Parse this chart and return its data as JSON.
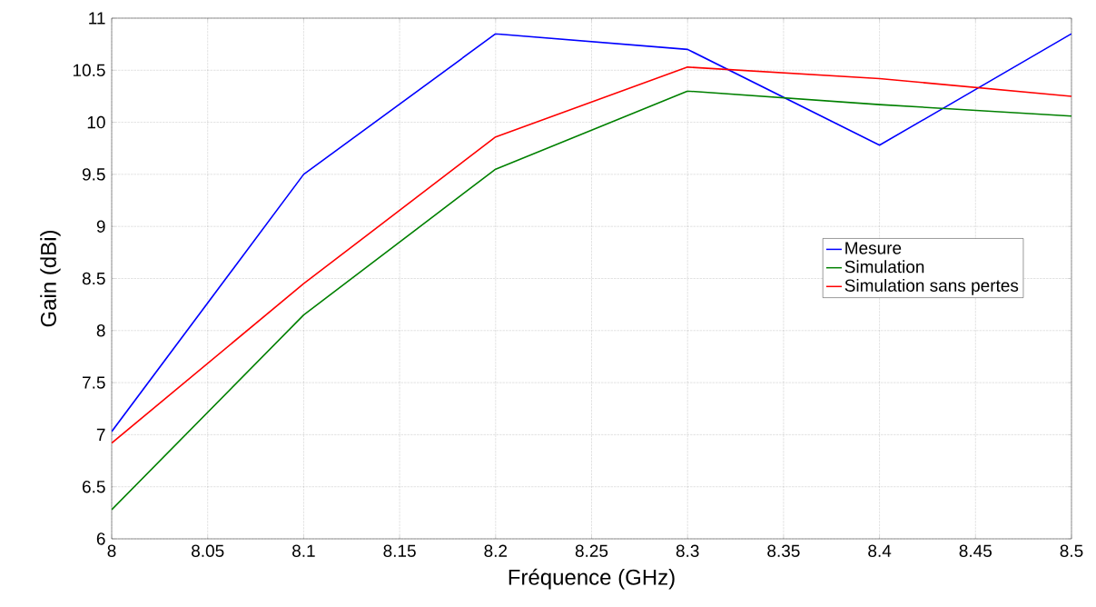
{
  "chart_data": {
    "type": "line",
    "xlabel": "Fréquence (GHz)",
    "ylabel": "Gain (dBi)",
    "x": [
      8.0,
      8.1,
      8.2,
      8.3,
      8.4,
      8.5
    ],
    "series": [
      {
        "name": "Mesure",
        "color": "#0000ff",
        "values": [
          7.03,
          9.5,
          10.85,
          10.7,
          9.78,
          10.85
        ]
      },
      {
        "name": "Simulation",
        "color": "#008000",
        "values": [
          6.28,
          8.15,
          9.55,
          10.3,
          10.17,
          10.06
        ]
      },
      {
        "name": "Simulation  sans pertes",
        "color": "#ff0000",
        "values": [
          6.92,
          8.45,
          9.86,
          10.53,
          10.42,
          10.25
        ]
      }
    ],
    "xlim": [
      8,
      8.5
    ],
    "ylim": [
      6,
      11
    ],
    "xticks": [
      8,
      8.05,
      8.1,
      8.15,
      8.2,
      8.25,
      8.3,
      8.35,
      8.4,
      8.45,
      8.5
    ],
    "yticks": [
      6,
      6.5,
      7,
      7.5,
      8,
      8.5,
      9,
      9.5,
      10,
      10.5,
      11
    ],
    "grid": true,
    "legend": "right"
  }
}
